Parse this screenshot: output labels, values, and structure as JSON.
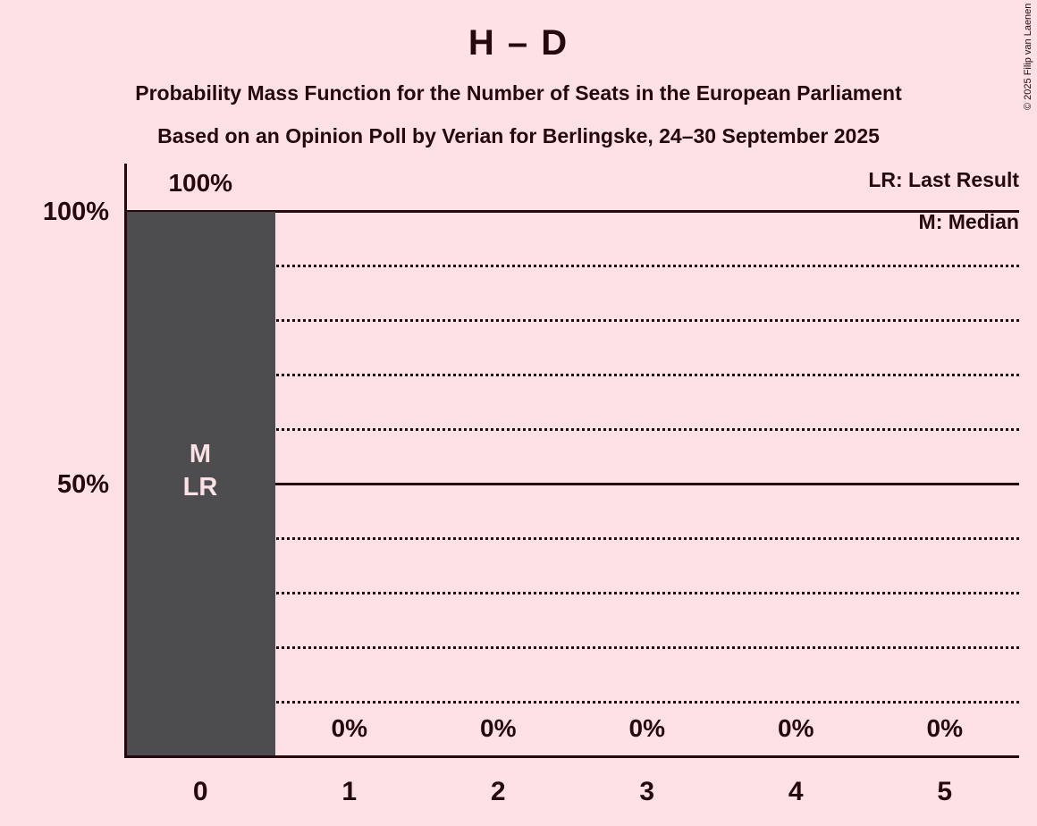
{
  "header": {
    "title": "H – D",
    "subtitle1": "Probability Mass Function for the Number of Seats in the European Parliament",
    "subtitle2": "Based on an Opinion Poll by Verian for Berlingske, 24–30 September 2025"
  },
  "legend": {
    "lr_label": "LR: Last Result",
    "m_label": "M: Median"
  },
  "copyright": "© 2025 Filip van Laenen",
  "chart_data": {
    "type": "bar",
    "title": "H – D",
    "categories": [
      "0",
      "1",
      "2",
      "3",
      "4",
      "5"
    ],
    "values": [
      100,
      0,
      0,
      0,
      0,
      0
    ],
    "value_labels": [
      "100%",
      "0%",
      "0%",
      "0%",
      "0%",
      "0%"
    ],
    "y_axis_ticks": [
      "100%",
      "50%"
    ],
    "ylim": [
      0,
      100
    ],
    "grid": {
      "solid_lines_percent": [
        100,
        50
      ],
      "dotted_lines_percent": [
        90,
        80,
        70,
        60,
        40,
        30,
        20,
        10
      ]
    },
    "bar_annotations": {
      "median": "M",
      "last_result": "LR"
    },
    "annotated_bar_index": 0,
    "legend_position": "top-right",
    "colors": {
      "background": "#fce1e6",
      "bar": "#4d4c4e",
      "text": "#26090f"
    }
  }
}
